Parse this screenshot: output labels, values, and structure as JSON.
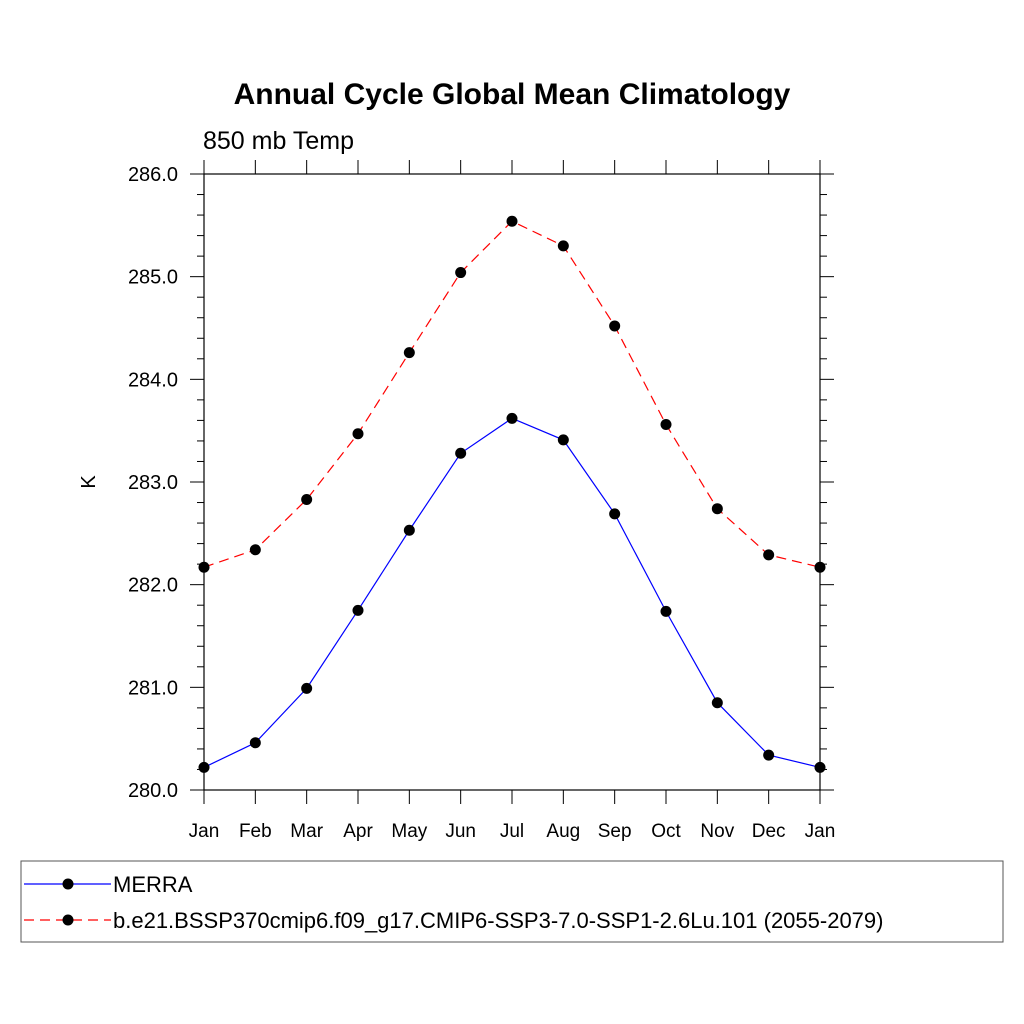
{
  "chart_data": {
    "type": "line",
    "title": "Annual Cycle Global Mean Climatology",
    "subtitle": "850 mb Temp",
    "xlabel": "",
    "ylabel": "K",
    "categories": [
      "Jan",
      "Feb",
      "Mar",
      "Apr",
      "May",
      "Jun",
      "Jul",
      "Aug",
      "Sep",
      "Oct",
      "Nov",
      "Dec",
      "Jan"
    ],
    "ylim": [
      280.0,
      286.0
    ],
    "yticks": [
      "280.0",
      "281.0",
      "282.0",
      "283.0",
      "284.0",
      "285.0",
      "286.0"
    ],
    "grid": false,
    "legend_position": "bottom",
    "series": [
      {
        "name": "MERRA",
        "color": "#0000ff",
        "line_style": "solid",
        "marker": "filled-circle",
        "values": [
          280.22,
          280.46,
          280.99,
          281.75,
          282.53,
          283.28,
          283.62,
          283.41,
          282.69,
          281.74,
          280.85,
          280.34,
          280.22
        ]
      },
      {
        "name": "b.e21.BSSP370cmip6.f09_g17.CMIP6-SSP3-7.0-SSP1-2.6Lu.101 (2055-2079)",
        "color": "#ff0000",
        "line_style": "dashed",
        "marker": "filled-circle",
        "values": [
          282.17,
          282.34,
          282.83,
          283.47,
          284.26,
          285.04,
          285.54,
          285.3,
          284.52,
          283.56,
          282.74,
          282.29,
          282.17
        ]
      }
    ]
  }
}
